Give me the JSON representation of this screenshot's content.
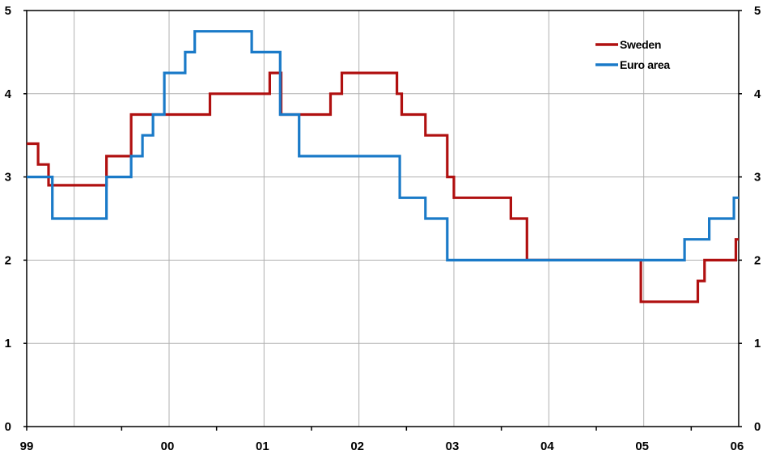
{
  "chart_data": {
    "type": "line",
    "step": true,
    "title": "",
    "xlabel": "",
    "ylabel": "",
    "x_tick_labels": [
      "99",
      "00",
      "01",
      "02",
      "03",
      "04",
      "05",
      "06"
    ],
    "x_tick_values": [
      1999,
      2000,
      2001,
      2002,
      2003,
      2004,
      2005,
      2006
    ],
    "xlim": [
      1999,
      2006.5
    ],
    "ylim": [
      0,
      5
    ],
    "y_ticks": [
      0,
      1,
      2,
      3,
      4,
      5
    ],
    "y_tick_labels": [
      "0",
      "1",
      "2",
      "3",
      "4",
      "5"
    ],
    "grid": true,
    "legend_position": "top-right",
    "series": [
      {
        "name": "Sweden",
        "color": "#b01010",
        "x": [
          1999.0,
          1999.12,
          1999.23,
          1999.84,
          2000.1,
          2000.93,
          2001.56,
          2001.68,
          2001.87,
          2002.2,
          2002.32,
          2002.9,
          2002.95,
          2003.2,
          2003.43,
          2003.5,
          2004.1,
          2004.27,
          2005.47,
          2006.07,
          2006.14,
          2006.47,
          2006.5
        ],
        "values": [
          3.4,
          3.15,
          2.9,
          3.25,
          3.75,
          4.0,
          4.25,
          3.75,
          3.75,
          4.0,
          4.25,
          4.0,
          3.75,
          3.5,
          3.0,
          2.75,
          2.5,
          2.0,
          1.5,
          1.75,
          2.0,
          2.25,
          2.25
        ]
      },
      {
        "name": "Euro area",
        "color": "#1a7ac8",
        "x": [
          1999.0,
          1999.27,
          1999.84,
          2000.1,
          2000.22,
          2000.33,
          2000.45,
          2000.67,
          2000.77,
          2001.37,
          2001.67,
          2001.87,
          2002.93,
          2003.2,
          2003.43,
          2005.93,
          2006.19,
          2006.45,
          2006.5
        ],
        "values": [
          3.0,
          2.5,
          3.0,
          3.25,
          3.5,
          3.75,
          4.25,
          4.5,
          4.75,
          4.5,
          3.75,
          3.25,
          2.75,
          2.5,
          2.0,
          2.25,
          2.5,
          2.75,
          2.75
        ]
      }
    ]
  }
}
